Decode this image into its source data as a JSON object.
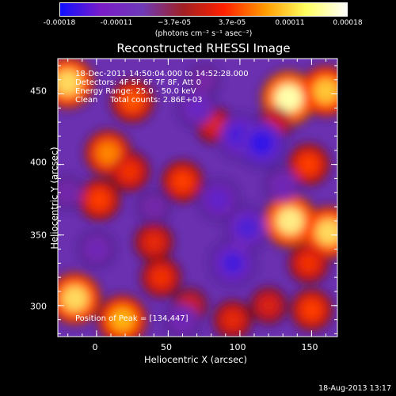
{
  "colorbar": {
    "ticks": [
      "-0.00018",
      "-0.00011",
      "−3.7e-05",
      "3.7e-05",
      "0.00011",
      "0.00018"
    ],
    "unit_label": "(photons cm⁻² s⁻¹ asec⁻²)",
    "colors": [
      "#1010ff",
      "#7a1cc8",
      "#6e3ab8",
      "#a02024",
      "#ff2000",
      "#ff9a00",
      "#ffff60",
      "#ffffff"
    ]
  },
  "chart_data": {
    "type": "heatmap",
    "title": "Reconstructed RHESSI Image",
    "xlabel": "Heliocentric X (arcsec)",
    "ylabel": "Heliocentric Y (arcsec)",
    "xlim": [
      -27,
      168
    ],
    "ylim": [
      278,
      475
    ],
    "xticks": [
      "0",
      "50",
      "100",
      "150"
    ],
    "xtick_values": [
      0,
      50,
      100,
      150
    ],
    "yticks": [
      "300",
      "350",
      "400",
      "450"
    ],
    "ytick_values": [
      300,
      350,
      400,
      450
    ],
    "colorbar_range": [
      -0.00018,
      0.00018
    ],
    "blobs": [
      {
        "x": -20,
        "y": 458,
        "value": 0.00016
      },
      {
        "x": 25,
        "y": 445,
        "value": 0.0001
      },
      {
        "x": 8,
        "y": 408,
        "value": 0.00012
      },
      {
        "x": 23,
        "y": 395,
        "value": 8e-05
      },
      {
        "x": 2,
        "y": 375,
        "value": 9e-05
      },
      {
        "x": 60,
        "y": 388,
        "value": 9e-05
      },
      {
        "x": 82,
        "y": 428,
        "value": 6e-05
      },
      {
        "x": 134,
        "y": 447,
        "value": 0.00018
      },
      {
        "x": 160,
        "y": 452,
        "value": 0.00015
      },
      {
        "x": 148,
        "y": 400,
        "value": 9e-05
      },
      {
        "x": 135,
        "y": 360,
        "value": 0.00017
      },
      {
        "x": 162,
        "y": 352,
        "value": 0.00016
      },
      {
        "x": 148,
        "y": 330,
        "value": 8e-05
      },
      {
        "x": 150,
        "y": 297,
        "value": 9e-05
      },
      {
        "x": -15,
        "y": 305,
        "value": 0.00016
      },
      {
        "x": 18,
        "y": 290,
        "value": 0.00014
      },
      {
        "x": 45,
        "y": 320,
        "value": 8e-05
      },
      {
        "x": 40,
        "y": 345,
        "value": 7e-05
      },
      {
        "x": 95,
        "y": 290,
        "value": 7e-05
      },
      {
        "x": 120,
        "y": 300,
        "value": 6e-05
      },
      {
        "x": 65,
        "y": 300,
        "value": 5e-05
      },
      {
        "x": 125,
        "y": 430,
        "value": 5e-05
      },
      {
        "x": 100,
        "y": 420,
        "value": -0.00012
      },
      {
        "x": 115,
        "y": 415,
        "value": -0.00014
      },
      {
        "x": 70,
        "y": 440,
        "value": -8e-05
      },
      {
        "x": 95,
        "y": 330,
        "value": -0.00012
      },
      {
        "x": 105,
        "y": 355,
        "value": -0.00011
      },
      {
        "x": 85,
        "y": 375,
        "value": -9e-05
      },
      {
        "x": 60,
        "y": 290,
        "value": -6e-05
      },
      {
        "x": 40,
        "y": 370,
        "value": -4e-05
      },
      {
        "x": 0,
        "y": 340,
        "value": -6e-05
      },
      {
        "x": -20,
        "y": 380,
        "value": -4e-05
      },
      {
        "x": 130,
        "y": 385,
        "value": -6e-05
      },
      {
        "x": 75,
        "y": 460,
        "value": -3e-05
      }
    ],
    "peak": {
      "x": 134,
      "y": 447
    }
  },
  "info": {
    "time_range": "18-Dec-2011 14:50:04.000 to 14:52:28.000",
    "detectors": "Detectors: 4F 5F 6F 7F 8F, Att 0",
    "energy": "Energy Range: 25.0 - 50.0 keV",
    "method": "Clean     Total counts: 2.86E+03",
    "peak_label": "Position of Peak = [134,447]"
  },
  "timestamp": "18-Aug-2013 13:17"
}
